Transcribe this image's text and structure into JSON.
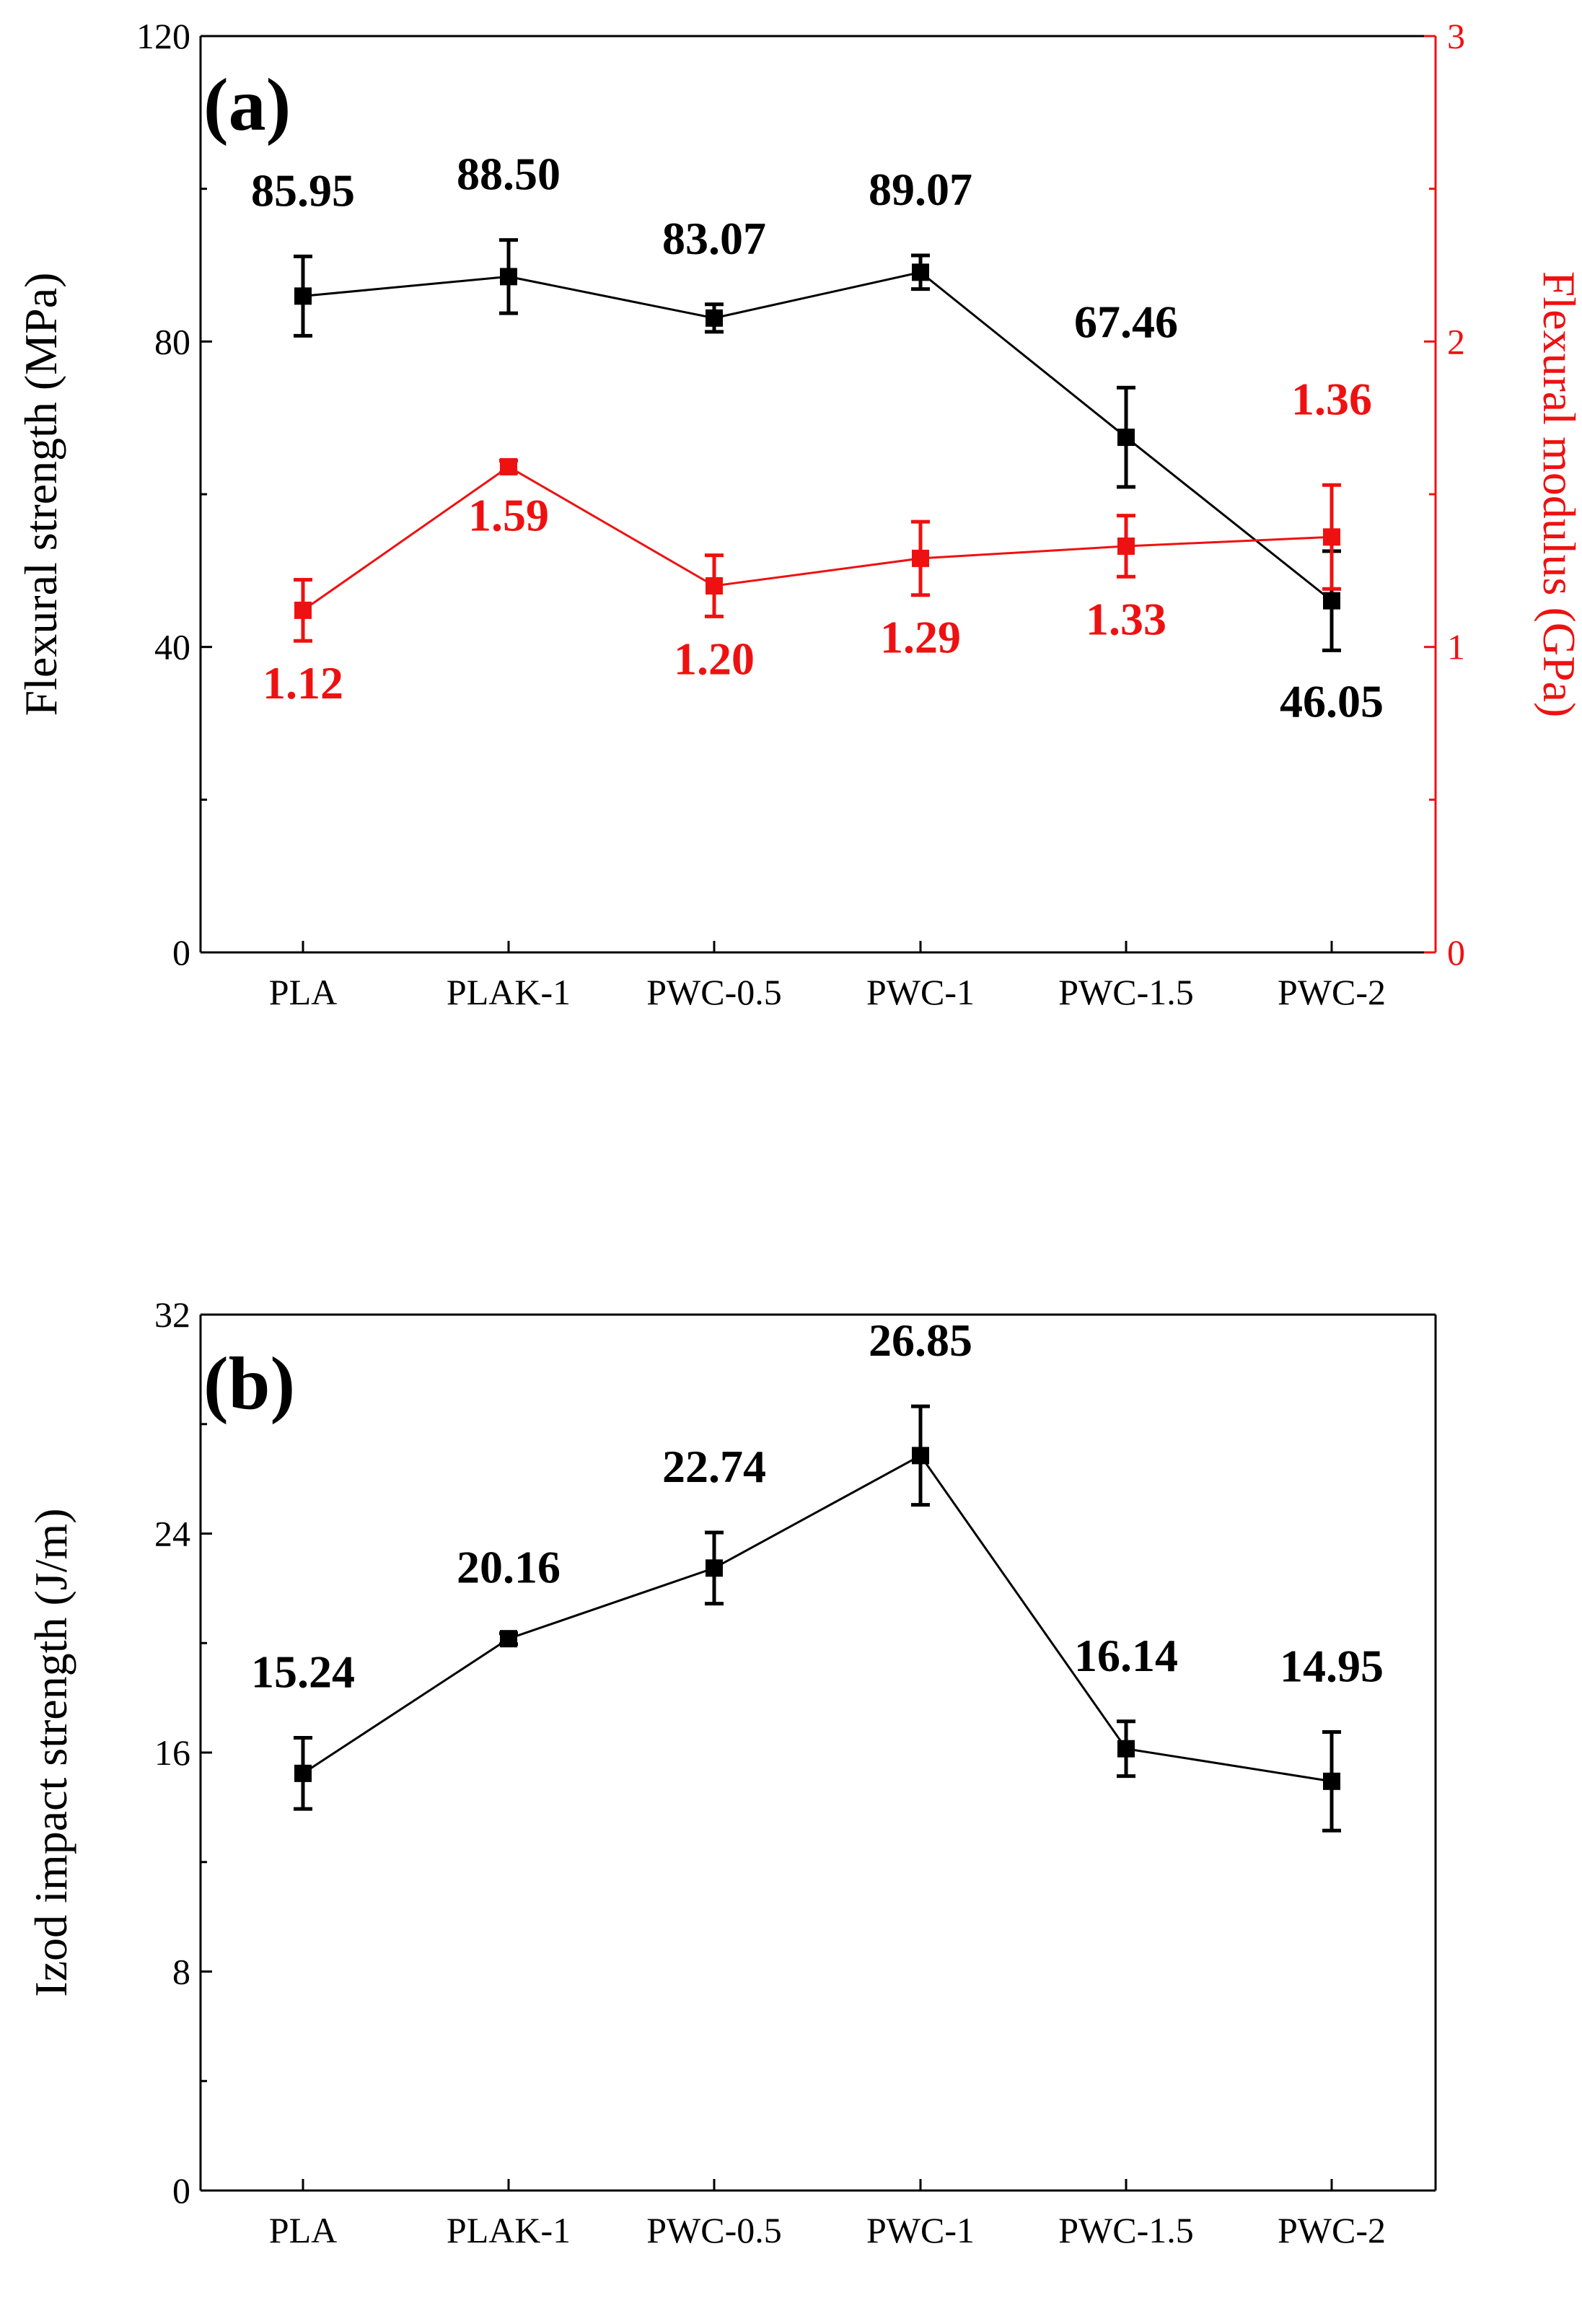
{
  "chart_data": [
    {
      "panel_label": "(a)",
      "type": "line",
      "categories": [
        "PLA",
        "PLAK-1",
        "PWC-0.5",
        "PWC-1",
        "PWC-1.5",
        "PWC-2"
      ],
      "left_axis": {
        "label": "Flexural strength (MPa)",
        "ylim": [
          0,
          120
        ],
        "ticks": [
          "0",
          "40",
          "80",
          "120"
        ],
        "color": "#000000"
      },
      "right_axis": {
        "label": "Flexural modulus (GPa)",
        "ylim": [
          0,
          3
        ],
        "ticks": [
          "0",
          "1",
          "2",
          "3"
        ],
        "color": "#ee1111"
      },
      "series": [
        {
          "name": "Flexural strength",
          "axis": "left",
          "color": "#000000",
          "values": [
            85.95,
            88.5,
            83.07,
            89.07,
            67.46,
            46.05
          ],
          "errors": [
            5.2,
            4.8,
            1.8,
            2.2,
            6.5,
            6.5
          ],
          "labels": [
            "85.95",
            "88.50",
            "83.07",
            "89.07",
            "67.46",
            "46.05"
          ],
          "label_position": [
            "above",
            "above",
            "above",
            "above",
            "above",
            "below"
          ]
        },
        {
          "name": "Flexural modulus",
          "axis": "right",
          "color": "#ee1111",
          "values": [
            1.12,
            1.59,
            1.2,
            1.29,
            1.33,
            1.36
          ],
          "errors": [
            0.1,
            0.02,
            0.1,
            0.12,
            0.1,
            0.17
          ],
          "labels": [
            "1.12",
            "1.59",
            "1.20",
            "1.29",
            "1.33",
            "1.36"
          ],
          "label_position": [
            "below",
            "below",
            "below",
            "below",
            "below",
            "above"
          ]
        }
      ]
    },
    {
      "panel_label": "(b)",
      "type": "line",
      "categories": [
        "PLA",
        "PLAK-1",
        "PWC-0.5",
        "PWC-1",
        "PWC-1.5",
        "PWC-2"
      ],
      "left_axis": {
        "label": "Izod impact strength (J/m)",
        "ylim": [
          0,
          32
        ],
        "ticks": [
          "0",
          "8",
          "16",
          "24",
          "32"
        ],
        "color": "#000000"
      },
      "series": [
        {
          "name": "Izod impact strength",
          "axis": "left",
          "color": "#000000",
          "values": [
            15.24,
            20.16,
            22.74,
            26.85,
            16.14,
            14.95
          ],
          "errors": [
            1.3,
            0.2,
            1.3,
            1.8,
            1.0,
            1.8
          ],
          "labels": [
            "15.24",
            "20.16",
            "22.74",
            "26.85",
            "16.14",
            "14.95"
          ],
          "label_position": [
            "above",
            "above",
            "above",
            "above",
            "above",
            "above"
          ]
        }
      ]
    }
  ]
}
